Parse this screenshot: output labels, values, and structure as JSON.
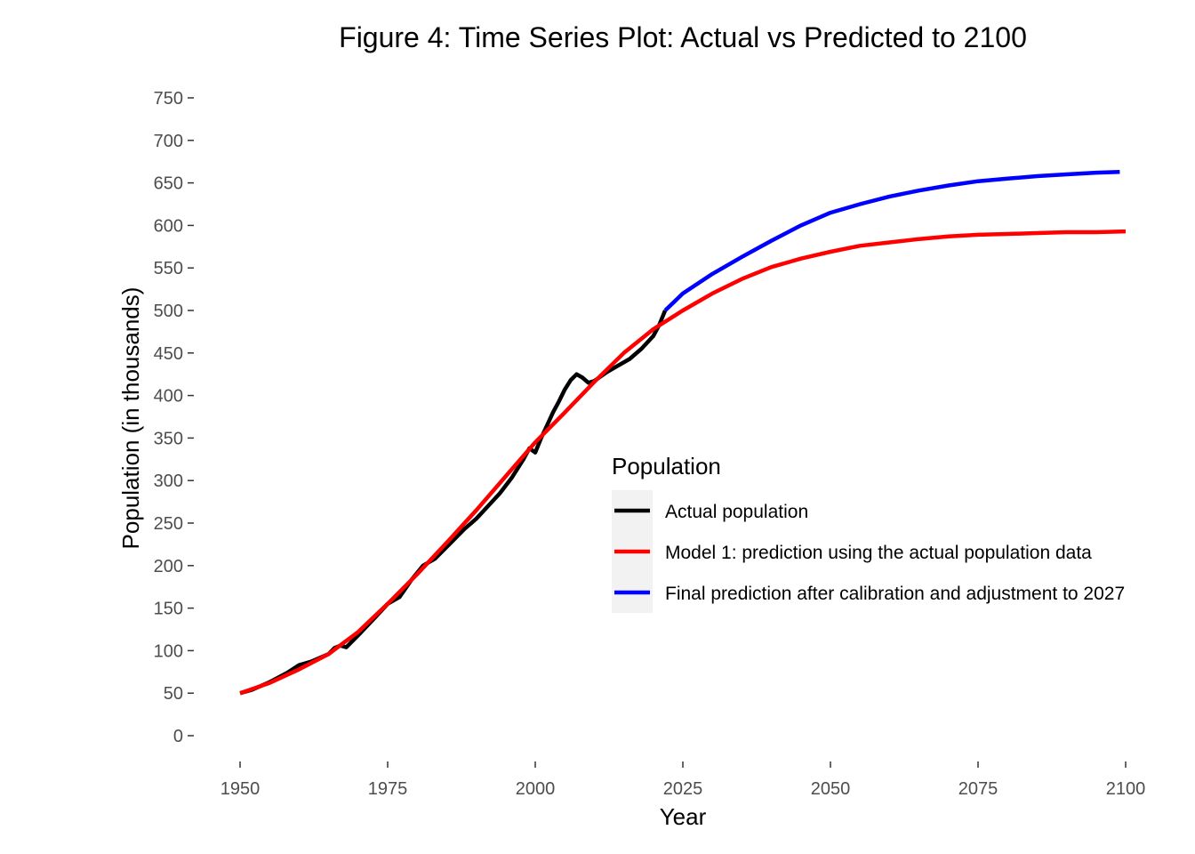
{
  "chart_data": {
    "type": "line",
    "title": "Figure 4: Time Series Plot: Actual vs Predicted to 2100",
    "xlabel": "Year",
    "ylabel": "Population (in thousands)",
    "xlim": [
      1950,
      2100
    ],
    "ylim": [
      0,
      750
    ],
    "x_ticks": [
      1950,
      1975,
      2000,
      2025,
      2050,
      2075,
      2100
    ],
    "y_ticks": [
      0,
      50,
      100,
      150,
      200,
      250,
      300,
      350,
      400,
      450,
      500,
      550,
      600,
      650,
      700,
      750
    ],
    "grid": false,
    "legend": {
      "title": "Population",
      "placement": "center-right"
    },
    "series": [
      {
        "name": "Actual population",
        "color": "#000000",
        "x": [
          1950,
          1952,
          1955,
          1958,
          1960,
          1962,
          1965,
          1966,
          1967,
          1968,
          1970,
          1973,
          1975,
          1977,
          1979,
          1981,
          1983,
          1985,
          1988,
          1990,
          1992,
          1994,
          1996,
          1998,
          1999,
          2000,
          2001,
          2002,
          2003,
          2004,
          2005,
          2006,
          2007,
          2008,
          2009,
          2010,
          2012,
          2014,
          2016,
          2018,
          2020,
          2021,
          2022
        ],
        "y": [
          50,
          54,
          63,
          74,
          83,
          87,
          96,
          103,
          106,
          104,
          118,
          140,
          155,
          163,
          183,
          200,
          208,
          222,
          243,
          255,
          270,
          285,
          303,
          325,
          338,
          333,
          350,
          365,
          380,
          393,
          407,
          418,
          425,
          421,
          415,
          417,
          427,
          435,
          443,
          455,
          470,
          483,
          500
        ]
      },
      {
        "name": "Model 1: prediction using the actual population data",
        "color": "#ff0000",
        "x": [
          1950,
          1955,
          1960,
          1965,
          1970,
          1975,
          1980,
          1985,
          1990,
          1995,
          2000,
          2005,
          2010,
          2015,
          2020,
          2025,
          2030,
          2035,
          2040,
          2045,
          2050,
          2055,
          2060,
          2065,
          2070,
          2075,
          2080,
          2085,
          2090,
          2095,
          2100
        ],
        "y": [
          50,
          62,
          78,
          96,
          122,
          155,
          190,
          227,
          265,
          305,
          345,
          380,
          416,
          450,
          478,
          500,
          520,
          537,
          551,
          561,
          569,
          576,
          580,
          584,
          587,
          589,
          590,
          591,
          592,
          592,
          593
        ]
      },
      {
        "name": "Final prediction after calibration and adjustment to 2027",
        "color": "#0000ff",
        "x": [
          2022,
          2025,
          2030,
          2035,
          2040,
          2045,
          2050,
          2055,
          2060,
          2065,
          2070,
          2075,
          2080,
          2085,
          2090,
          2095,
          2099
        ],
        "y": [
          500,
          520,
          543,
          563,
          582,
          600,
          615,
          625,
          634,
          641,
          647,
          652,
          655,
          658,
          660,
          662,
          663
        ]
      }
    ]
  }
}
